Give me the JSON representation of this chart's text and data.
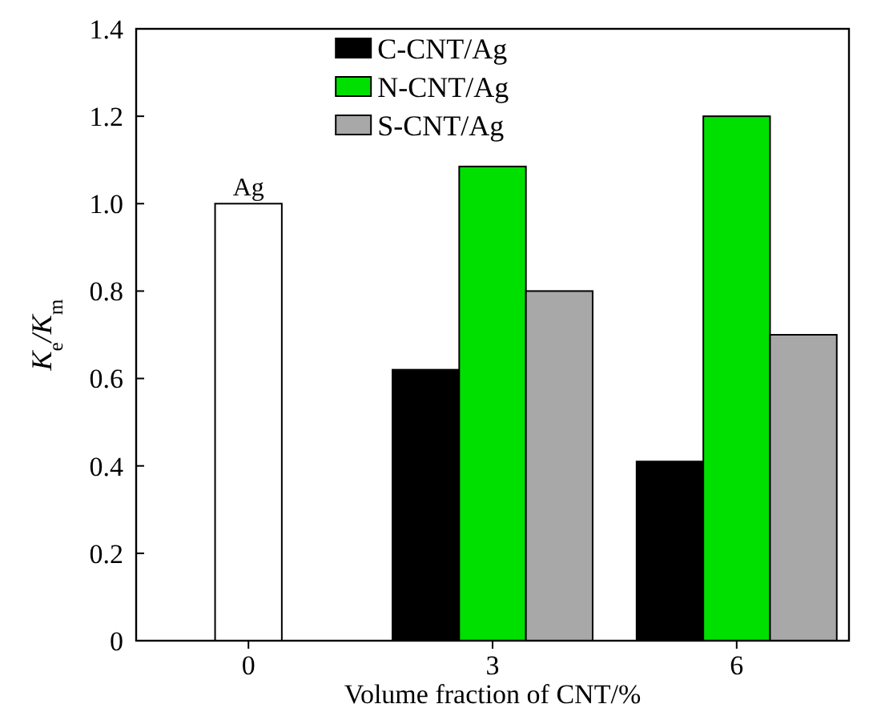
{
  "chart_data": {
    "type": "bar",
    "xlabel": "Volume fraction of CNT/%",
    "ylabel": "K$_{e}$/K$_{m}$",
    "categories": [
      "0",
      "3",
      "6"
    ],
    "series": [
      {
        "name": "Ag",
        "color": "#ffffff",
        "values": [
          1.0,
          null,
          null
        ]
      },
      {
        "name": "C-CNT/Ag",
        "color": "#000000",
        "values": [
          null,
          0.62,
          0.41
        ]
      },
      {
        "name": "N-CNT/Ag",
        "color": "#00e000",
        "values": [
          null,
          1.085,
          1.2
        ]
      },
      {
        "name": "S-CNT/Ag",
        "color": "#a8a8a8",
        "values": [
          null,
          0.8,
          0.7
        ]
      }
    ],
    "ylim": [
      0,
      1.4
    ],
    "yticks": [
      0,
      {
        "value": 0.2,
        "label": "0.2"
      },
      {
        "value": 0.4,
        "label": "0.4"
      },
      {
        "value": 0.6,
        "label": "0.6"
      },
      {
        "value": 0.8,
        "label": "0.8"
      },
      {
        "value": 1.0,
        "label": "1.0"
      },
      {
        "value": 1.2,
        "label": "1.2"
      },
      {
        "value": 1.4,
        "label": "1.4"
      }
    ],
    "legend": "top",
    "grid": false
  }
}
